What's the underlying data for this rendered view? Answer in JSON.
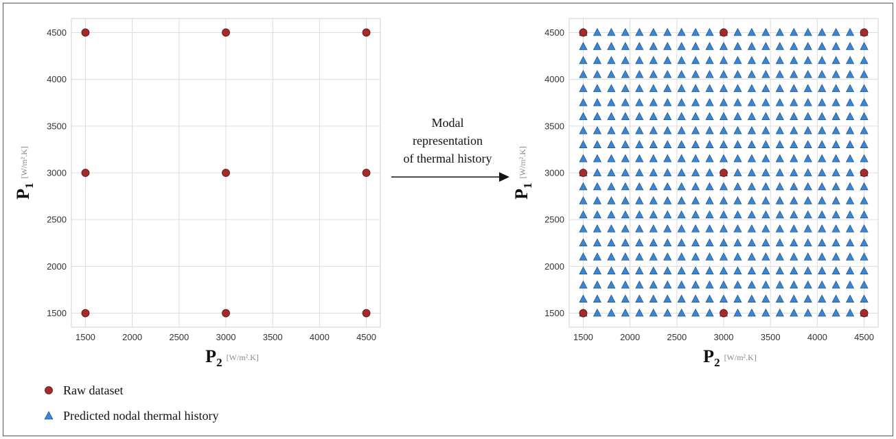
{
  "chart_data": [
    {
      "type": "scatter",
      "xlim": [
        1350,
        4650
      ],
      "ylim": [
        1350,
        4650
      ],
      "xticks": [
        "1500",
        "2000",
        "2500",
        "3000",
        "3500",
        "4000",
        "4500"
      ],
      "yticks": [
        "1500",
        "2000",
        "2500",
        "3000",
        "3500",
        "4000",
        "4500"
      ],
      "grid": true,
      "xlabel": {
        "main": "P",
        "sub": "2",
        "unit": "[W/m².K]"
      },
      "ylabel": {
        "main": "P",
        "sub": "1",
        "unit": "[W/m².K]"
      },
      "series": [
        {
          "name": "Raw dataset",
          "marker": "circle",
          "color": "#a52a2a",
          "x_values": [
            1500,
            3000,
            4500
          ],
          "y_values": [
            1500,
            3000,
            4500
          ]
        }
      ]
    },
    {
      "type": "scatter",
      "xlim": [
        1350,
        4650
      ],
      "ylim": [
        1350,
        4650
      ],
      "xticks": [
        "1500",
        "2000",
        "2500",
        "3000",
        "3500",
        "4000",
        "4500"
      ],
      "yticks": [
        "1500",
        "2000",
        "2500",
        "3000",
        "3500",
        "4000",
        "4500"
      ],
      "grid": true,
      "xlabel": {
        "main": "P",
        "sub": "2",
        "unit": "[W/m².K]"
      },
      "ylabel": {
        "main": "P",
        "sub": "1",
        "unit": "[W/m².K]"
      },
      "series": [
        {
          "name": "Predicted nodal thermal history",
          "marker": "triangle",
          "color": "#3a86d4",
          "grid_from": 1500,
          "grid_to": 4500,
          "grid_count": 21
        },
        {
          "name": "Raw dataset",
          "marker": "circle",
          "color": "#a52a2a",
          "x_values": [
            1500,
            3000,
            4500
          ],
          "y_values": [
            1500,
            3000,
            4500
          ]
        }
      ]
    }
  ],
  "arrow": {
    "lines": [
      "Modal",
      "representation",
      "of thermal history"
    ]
  },
  "legend": [
    {
      "marker": "circle",
      "color": "#a52a2a",
      "label": "Raw dataset"
    },
    {
      "marker": "triangle",
      "color": "#3a86d4",
      "label": "Predicted nodal thermal history"
    }
  ]
}
